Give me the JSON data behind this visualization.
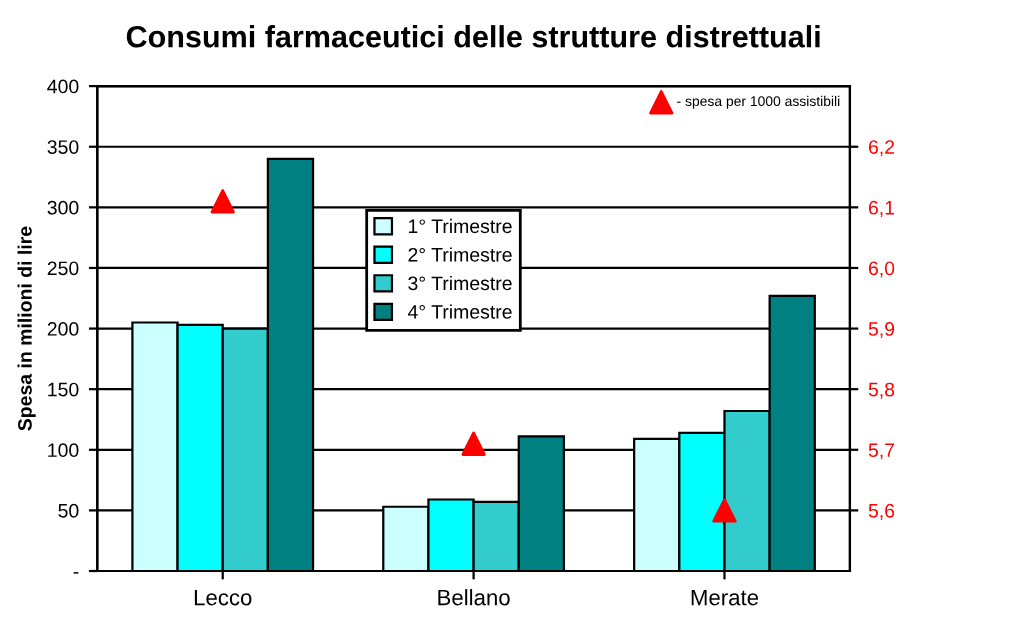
{
  "chart_data": {
    "type": "bar",
    "title": "Consumi farmaceutici delle strutture distrettuali",
    "ylabel": "Spesa in milioni di lire",
    "categories": [
      "Lecco",
      "Bellano",
      "Merate"
    ],
    "series": [
      {
        "name": "1° Trimestre",
        "color": "#ccffff",
        "values": [
          205,
          53,
          109
        ]
      },
      {
        "name": "2° Trimestre",
        "color": "#00ffff",
        "values": [
          203,
          59,
          114
        ]
      },
      {
        "name": "3° Trimestre",
        "color": "#33cccc",
        "values": [
          200,
          57,
          132
        ]
      },
      {
        "name": "4° Trimestre",
        "color": "#008080",
        "values": [
          340,
          111,
          227
        ]
      },
      {
        "name": "- spesa per 1000 assistibili",
        "type": "scatter",
        "axis": "y2",
        "marker": "triangle",
        "color": "#ff0000",
        "x": [
          "Lecco",
          "Bellano",
          "Merate"
        ],
        "values": [
          6.11,
          5.71,
          5.6
        ]
      }
    ],
    "ylim": [
      0,
      400
    ],
    "yticks": [
      {
        "value": 0,
        "label": "-"
      },
      50,
      100,
      150,
      200,
      250,
      300,
      350,
      400
    ],
    "y2lim": [
      5.5,
      6.3
    ],
    "y2ticks": [
      {
        "value": 5.6,
        "label": "5,6"
      },
      {
        "value": 5.7,
        "label": "5,7"
      },
      {
        "value": 5.8,
        "label": "5,8"
      },
      {
        "value": 5.9,
        "label": "5,9"
      },
      {
        "value": 6.0,
        "label": "6,0"
      },
      {
        "value": 6.1,
        "label": "6,1"
      },
      {
        "value": 6.2,
        "label": "6,2"
      }
    ],
    "grid": "y",
    "legend": "center"
  }
}
